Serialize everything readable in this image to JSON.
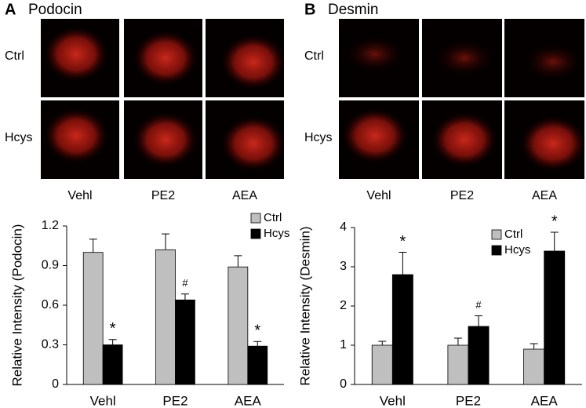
{
  "chart_data": [
    {
      "type": "bar",
      "panel": "A",
      "title": "Podocin",
      "image_rows": [
        "Ctrl",
        "Hcys"
      ],
      "image_columns": [
        "Vehl",
        "PE2",
        "AEA"
      ],
      "ylabel": "Relative Intensity (Podocin)",
      "categories": [
        "Vehl",
        "PE2",
        "AEA"
      ],
      "series": [
        {
          "name": "Ctrl",
          "color": "#bfbfbf",
          "values": [
            1.0,
            1.02,
            0.89
          ],
          "errors": [
            0.1,
            0.12,
            0.085
          ]
        },
        {
          "name": "Hcys",
          "color": "#000000",
          "values": [
            0.3,
            0.64,
            0.29
          ],
          "errors": [
            0.04,
            0.045,
            0.035
          ],
          "marks": [
            "*",
            "#",
            "*"
          ]
        }
      ],
      "ylim": [
        0,
        1.2
      ],
      "yticks": [
        0,
        0.3,
        0.6,
        0.9,
        1.2
      ],
      "legend": "upper right"
    },
    {
      "type": "bar",
      "panel": "B",
      "title": "Desmin",
      "image_rows": [
        "Ctrl",
        "Hcys"
      ],
      "image_columns": [
        "Vehl",
        "PE2",
        "AEA"
      ],
      "ylabel": "Relative Intensity (Desmin)",
      "categories": [
        "Vehl",
        "PE2",
        "AEA"
      ],
      "series": [
        {
          "name": "Ctrl",
          "color": "#bfbfbf",
          "values": [
            1.0,
            1.0,
            0.9
          ],
          "errors": [
            0.1,
            0.18,
            0.14
          ]
        },
        {
          "name": "Hcys",
          "color": "#000000",
          "values": [
            2.8,
            1.48,
            3.4
          ],
          "errors": [
            0.57,
            0.27,
            0.48
          ],
          "marks": [
            "*",
            "#",
            "*"
          ]
        }
      ],
      "ylim": [
        0,
        4
      ],
      "yticks": [
        0,
        1,
        2,
        3,
        4
      ],
      "legend": "upper right"
    }
  ]
}
